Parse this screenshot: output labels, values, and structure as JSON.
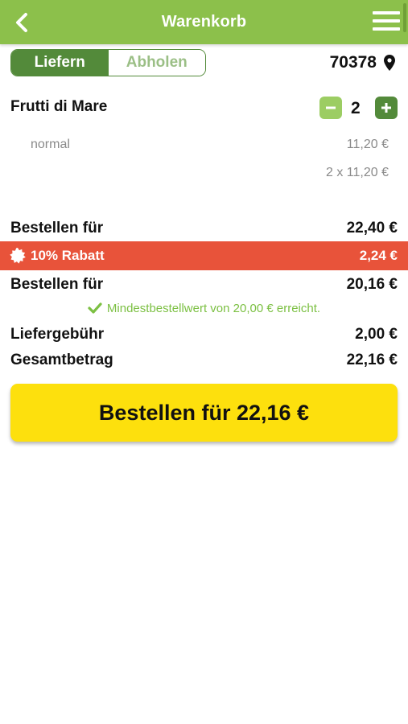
{
  "header": {
    "title": "Warenkorb",
    "back_icon": "chevron-left-icon",
    "menu_icon": "hamburger-menu-icon"
  },
  "delivery_toggle": {
    "options": [
      "Liefern",
      "Abholen"
    ],
    "selected": "Liefern"
  },
  "location": {
    "zip": "70378",
    "icon": "map-pin-icon"
  },
  "cart_item": {
    "name": "Frutti di Mare",
    "quantity": "2",
    "variant": "normal",
    "unit_price": "11,20 €",
    "line_total": "2 x 11,20 €"
  },
  "summary": {
    "subtotal_label": "Bestellen für",
    "subtotal_value": "22,40 €",
    "discount_label": "10% Rabatt",
    "discount_value": "2,24 €",
    "after_discount_label": "Bestellen für",
    "after_discount_value": "20,16 €",
    "min_order_note": "Mindestbestellwert von 20,00 € erreicht.",
    "delivery_fee_label": "Liefergebühr",
    "delivery_fee_value": "2,00 €",
    "total_label": "Gesamtbetrag",
    "total_value": "22,16 €"
  },
  "order_button": {
    "label": "Bestellen für 22,16 €"
  },
  "colors": {
    "header": "#8cc04b",
    "toggle_active": "#538a3a",
    "discount_bar": "#e8533a",
    "success_text": "#7cc043",
    "order_button": "#fde00d"
  }
}
